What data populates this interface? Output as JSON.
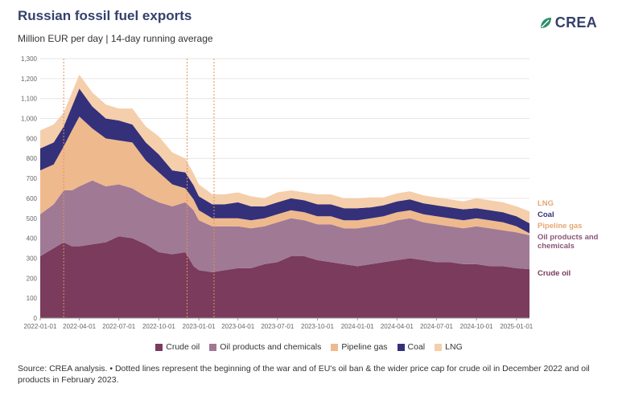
{
  "header": {
    "title": "Russian fossil fuel exports",
    "subtitle": "Million EUR per day | 14-day running average",
    "logo_text": "CREA"
  },
  "colors": {
    "crude_oil": "#7a3b5d",
    "oil_products": "#a07995",
    "pipeline_gas": "#efb98e",
    "coal": "#35307a",
    "lng": "#f5ceab",
    "title": "#35416c"
  },
  "legend": [
    {
      "label": "Crude oil",
      "color": "#7a3b5d"
    },
    {
      "label": "Oil products and chemicals",
      "color": "#a07995"
    },
    {
      "label": "Pipeline gas",
      "color": "#efb98e"
    },
    {
      "label": "Coal",
      "color": "#35307a"
    },
    {
      "label": "LNG",
      "color": "#f5ceab"
    }
  ],
  "series_labels": {
    "lng": "LNG",
    "coal": "Coal",
    "pipeline_gas": "Pipeline gas",
    "oil_products_1": "Oil products and",
    "oil_products_2": "chemicals",
    "crude_oil": "Crude oil"
  },
  "source": "Source: CREA analysis. • Dotted lines represent the beginning of the war and of EU's oil ban & the wider price cap for crude oil in December 2022 and oil products in February 2023.",
  "chart_data": {
    "type": "area",
    "stacked": true,
    "ylim": [
      0,
      1300
    ],
    "yticks": [
      0,
      100,
      200,
      300,
      400,
      500,
      600,
      700,
      800,
      900,
      1000,
      1100,
      1200,
      1300
    ],
    "ytick_labels": [
      "0",
      "100",
      "200",
      "300",
      "400",
      "500",
      "600",
      "700",
      "800",
      "900",
      "1,000",
      "1,100",
      "1,200",
      "1,300"
    ],
    "xlim": [
      "2022-01-01",
      "2025-01-31"
    ],
    "xticks": [
      "2022-01-01",
      "2022-04-01",
      "2022-07-01",
      "2022-10-01",
      "2023-01-01",
      "2023-04-01",
      "2023-07-01",
      "2023-10-01",
      "2024-01-01",
      "2024-04-01",
      "2024-07-01",
      "2024-10-01",
      "2025-01-01"
    ],
    "event_lines": [
      "2022-02-24",
      "2022-12-05",
      "2023-02-05"
    ],
    "grid": true,
    "x": [
      "2022-01-01",
      "2022-02-01",
      "2022-02-24",
      "2022-03-15",
      "2022-04-01",
      "2022-05-01",
      "2022-06-01",
      "2022-07-01",
      "2022-08-01",
      "2022-09-01",
      "2022-10-01",
      "2022-11-01",
      "2022-12-01",
      "2022-12-20",
      "2023-01-01",
      "2023-02-01",
      "2023-03-01",
      "2023-04-01",
      "2023-05-01",
      "2023-06-01",
      "2023-07-01",
      "2023-08-01",
      "2023-09-01",
      "2023-10-01",
      "2023-11-01",
      "2023-12-01",
      "2024-01-01",
      "2024-02-01",
      "2024-03-01",
      "2024-04-01",
      "2024-05-01",
      "2024-06-01",
      "2024-07-01",
      "2024-08-01",
      "2024-09-01",
      "2024-10-01",
      "2024-11-01",
      "2024-12-01",
      "2025-01-01",
      "2025-01-31"
    ],
    "series": [
      {
        "name": "Crude oil",
        "key": "crude_oil",
        "values": [
          310,
          350,
          380,
          360,
          360,
          370,
          380,
          410,
          400,
          370,
          330,
          320,
          330,
          260,
          240,
          230,
          240,
          250,
          250,
          270,
          280,
          310,
          310,
          290,
          280,
          270,
          260,
          270,
          280,
          290,
          300,
          290,
          280,
          280,
          270,
          270,
          260,
          260,
          250,
          245
        ]
      },
      {
        "name": "Oil products and chemicals",
        "key": "oil_products",
        "values": [
          210,
          220,
          260,
          280,
          300,
          320,
          280,
          260,
          250,
          240,
          250,
          240,
          250,
          280,
          250,
          230,
          220,
          210,
          200,
          190,
          200,
          190,
          180,
          180,
          190,
          180,
          190,
          190,
          190,
          200,
          200,
          190,
          190,
          180,
          180,
          190,
          190,
          180,
          180,
          170
        ]
      },
      {
        "name": "Pipeline gas",
        "key": "pipeline_gas",
        "values": [
          220,
          200,
          220,
          300,
          350,
          260,
          240,
          220,
          230,
          180,
          150,
          110,
          70,
          55,
          50,
          40,
          40,
          40,
          40,
          40,
          40,
          40,
          40,
          40,
          40,
          40,
          40,
          40,
          40,
          40,
          40,
          40,
          40,
          40,
          40,
          40,
          40,
          40,
          30,
          10
        ]
      },
      {
        "name": "Coal",
        "key": "coal",
        "values": [
          110,
          110,
          100,
          120,
          140,
          110,
          100,
          100,
          90,
          90,
          90,
          70,
          80,
          70,
          70,
          70,
          70,
          80,
          70,
          60,
          60,
          60,
          60,
          60,
          60,
          60,
          60,
          55,
          55,
          55,
          55,
          55,
          55,
          55,
          55,
          50,
          50,
          50,
          50,
          50
        ]
      },
      {
        "name": "LNG",
        "key": "lng",
        "values": [
          90,
          90,
          70,
          70,
          70,
          70,
          70,
          60,
          80,
          80,
          90,
          90,
          70,
          60,
          60,
          50,
          50,
          50,
          50,
          40,
          50,
          40,
          40,
          50,
          50,
          50,
          50,
          50,
          40,
          40,
          40,
          40,
          40,
          40,
          40,
          50,
          50,
          50,
          50,
          60
        ]
      }
    ]
  }
}
